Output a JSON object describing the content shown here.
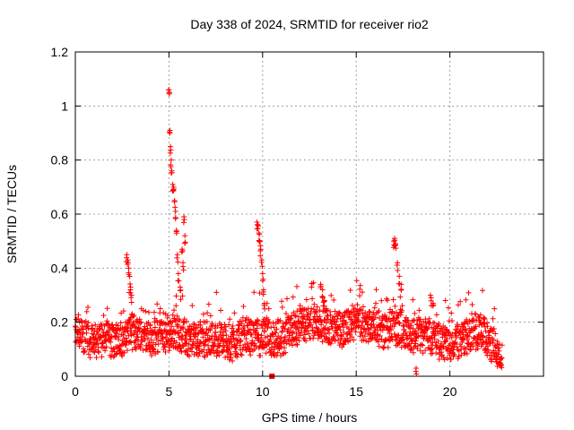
{
  "chart_data": {
    "type": "scatter",
    "title": "Day 338 of 2024, SRMTID for receiver rio2",
    "xlabel": "GPS time / hours",
    "ylabel": "SRMTID / TECUs",
    "xlim": [
      0,
      25
    ],
    "ylim": [
      0,
      1.2
    ],
    "x_ticks": [
      0,
      5,
      10,
      15,
      20
    ],
    "x_tick_labels": [
      "0",
      "5",
      "10",
      "15",
      "20"
    ],
    "y_ticks": [
      0,
      0.2,
      0.4,
      0.6,
      0.8,
      1,
      1.2
    ],
    "y_tick_labels": [
      "0",
      "0.2",
      "0.4",
      "0.6",
      "0.8",
      "1",
      "1.2"
    ],
    "grid": true,
    "marker": "+",
    "series": [
      {
        "name": "SRMTID",
        "color": "#ff0000",
        "baseline_profile": [
          [
            0.0,
            0.17
          ],
          [
            0.5,
            0.15
          ],
          [
            1.0,
            0.13
          ],
          [
            1.5,
            0.15
          ],
          [
            2.0,
            0.13
          ],
          [
            2.5,
            0.14
          ],
          [
            3.0,
            0.17
          ],
          [
            3.5,
            0.16
          ],
          [
            4.0,
            0.14
          ],
          [
            4.5,
            0.15
          ],
          [
            5.0,
            0.16
          ],
          [
            5.5,
            0.16
          ],
          [
            6.0,
            0.14
          ],
          [
            6.5,
            0.13
          ],
          [
            7.0,
            0.14
          ],
          [
            7.5,
            0.14
          ],
          [
            8.0,
            0.13
          ],
          [
            8.5,
            0.13
          ],
          [
            9.0,
            0.15
          ],
          [
            9.5,
            0.15
          ],
          [
            10.0,
            0.15
          ],
          [
            10.5,
            0.14
          ],
          [
            11.0,
            0.14
          ],
          [
            11.5,
            0.16
          ],
          [
            12.0,
            0.2
          ],
          [
            12.5,
            0.19
          ],
          [
            13.0,
            0.2
          ],
          [
            13.5,
            0.18
          ],
          [
            14.0,
            0.17
          ],
          [
            14.5,
            0.18
          ],
          [
            15.0,
            0.2
          ],
          [
            15.5,
            0.19
          ],
          [
            16.0,
            0.19
          ],
          [
            16.5,
            0.16
          ],
          [
            17.0,
            0.19
          ],
          [
            17.5,
            0.17
          ],
          [
            18.0,
            0.15
          ],
          [
            18.5,
            0.16
          ],
          [
            19.0,
            0.15
          ],
          [
            19.5,
            0.13
          ],
          [
            20.0,
            0.11
          ],
          [
            20.5,
            0.13
          ],
          [
            21.0,
            0.15
          ],
          [
            21.5,
            0.17
          ],
          [
            22.0,
            0.14
          ],
          [
            22.5,
            0.1
          ],
          [
            22.8,
            0.05
          ]
        ],
        "peak_points": [
          [
            2.75,
            0.45
          ],
          [
            2.8,
            0.43
          ],
          [
            2.85,
            0.4
          ],
          [
            2.9,
            0.37
          ],
          [
            2.95,
            0.33
          ],
          [
            3.0,
            0.3
          ],
          [
            5.0,
            1.06
          ],
          [
            5.02,
            1.05
          ],
          [
            5.05,
            0.91
          ],
          [
            5.08,
            0.85
          ],
          [
            5.12,
            0.8
          ],
          [
            5.15,
            0.76
          ],
          [
            5.2,
            0.71
          ],
          [
            5.25,
            0.7
          ],
          [
            5.3,
            0.65
          ],
          [
            5.35,
            0.61
          ],
          [
            5.4,
            0.54
          ],
          [
            5.45,
            0.45
          ],
          [
            5.5,
            0.38
          ],
          [
            5.6,
            0.33
          ],
          [
            5.7,
            0.47
          ],
          [
            5.75,
            0.42
          ],
          [
            5.8,
            0.59
          ],
          [
            5.85,
            0.52
          ],
          [
            9.7,
            0.57
          ],
          [
            9.75,
            0.56
          ],
          [
            9.8,
            0.53
          ],
          [
            9.85,
            0.5
          ],
          [
            9.9,
            0.47
          ],
          [
            9.95,
            0.43
          ],
          [
            10.0,
            0.38
          ],
          [
            10.05,
            0.32
          ],
          [
            10.1,
            0.27
          ],
          [
            13.1,
            0.34
          ],
          [
            13.2,
            0.32
          ],
          [
            13.3,
            0.28
          ],
          [
            13.4,
            0.25
          ],
          [
            17.0,
            0.5
          ],
          [
            17.05,
            0.51
          ],
          [
            17.1,
            0.49
          ],
          [
            17.2,
            0.42
          ],
          [
            17.3,
            0.37
          ],
          [
            17.4,
            0.34
          ],
          [
            18.2,
            0.03
          ],
          [
            19.0,
            0.29
          ],
          [
            19.1,
            0.27
          ]
        ],
        "outlier_points": [
          [
            10.5,
            0.0
          ]
        ]
      }
    ]
  }
}
